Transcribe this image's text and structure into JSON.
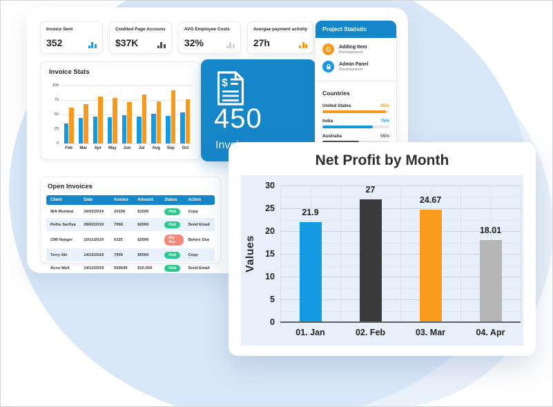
{
  "colors": {
    "accent_blue": "#1586c8",
    "bar_blue": "#129be0",
    "orange": "#f8991d",
    "green": "#2bc990",
    "red": "#f4897b",
    "dark_gray": "#3a3a3a",
    "light_gray": "#b5b5b5",
    "blob_main": "#d9e8f8",
    "blob_light": "#e9f1fb",
    "plot_bg": "#e7f0fa"
  },
  "kpis": [
    {
      "title": "Invoice Sent",
      "value": "352",
      "icon": "mini-bar-chart-icon",
      "icon_color": "#1e96e8"
    },
    {
      "title": "Credited Page Accouns",
      "value": "$37K",
      "icon": "mini-bar-chart-icon",
      "icon_color": "#4a4a4a"
    },
    {
      "title": "AVG Employee Costs",
      "value": "32%",
      "icon": "mini-bar-chart-icon",
      "icon_color": "#cfcfcf"
    },
    {
      "title": "Avergae payment activity",
      "value": "27h",
      "icon": "mini-bar-chart-icon",
      "icon_color": "#f8991d"
    }
  ],
  "invoice_total": {
    "value": "450",
    "label": "Invoices",
    "icon": "invoice-document-icon"
  },
  "project_statistic": {
    "header": "Project Statistic",
    "projects": [
      {
        "name": "Adding Item",
        "sub": "Development",
        "icon_type": "letter",
        "icon": "G",
        "icon_bg": "#f8991d"
      },
      {
        "name": "Admin Panel",
        "sub": "Development",
        "icon_type": "lock",
        "icon": "lock-icon",
        "icon_bg": "#1e96e8"
      }
    ],
    "countries_label": "Countries",
    "countries": [
      {
        "name": "United States",
        "pct": 95,
        "pct_label": "95%",
        "bar_color": "#f8991d",
        "label_color": "#f8991d"
      },
      {
        "name": "India",
        "pct": 75,
        "pct_label": "75%",
        "bar_color": "#129be0",
        "label_color": "#129be0"
      },
      {
        "name": "Australia",
        "pct": 55,
        "pct_label": "55%",
        "bar_color": "#4a4a4a",
        "label_color": "#5a5e64"
      }
    ]
  },
  "open_invoices": {
    "title": "Open Invoices",
    "columns": [
      "Client",
      "Date",
      "Invoice",
      "Amount",
      "Status",
      "Action"
    ],
    "rows": [
      {
        "client": "IRA Mumbai",
        "date": "16/02/2019",
        "invoice": "20156",
        "amount": "$1500",
        "status": "Paid",
        "action": "Copy"
      },
      {
        "client": "Pethe Sarfiya",
        "date": "28/02/2019",
        "invoice": "7959",
        "amount": "$2000",
        "status": "Paid",
        "action": "Send Email"
      },
      {
        "client": "CMI Hanger",
        "date": "10/11/2019",
        "invoice": "6325",
        "amount": "$2500",
        "status": "Big Due",
        "action": "Before Due"
      },
      {
        "client": "Terry Aki",
        "date": "14/12/2019",
        "invoice": "7959",
        "amount": "$5000",
        "status": "Paid",
        "action": "Copy"
      },
      {
        "client": "Acno Mull",
        "date": "14/12/2019",
        "invoice": "559549",
        "amount": "$10,000",
        "status": "Paid",
        "action": "Send Email"
      }
    ]
  },
  "chart_data": [
    {
      "type": "bar",
      "title": "Invoice Stats",
      "categories": [
        "Feb",
        "Mar",
        "Apr",
        "May",
        "Jun",
        "Jul",
        "Aug",
        "Sep",
        "Oct"
      ],
      "series": [
        {
          "name": "series-blue",
          "color": "#129be0",
          "values": [
            35,
            44,
            46,
            45,
            49,
            47,
            51,
            48,
            54
          ]
        },
        {
          "name": "series-orange",
          "color": "#f8991d",
          "values": [
            62,
            68,
            81,
            79,
            71,
            85,
            73,
            92,
            76
          ]
        }
      ],
      "xlabel": "",
      "ylabel": "",
      "ylim": [
        0,
        100
      ],
      "yticks": [
        0,
        25,
        50,
        75,
        100
      ],
      "grid": true,
      "legend": "none"
    },
    {
      "type": "bar",
      "title": "Net Profit by Month",
      "categories": [
        "01. Jan",
        "02. Feb",
        "03. Mar",
        "04. Apr"
      ],
      "values": [
        21.9,
        27,
        24.67,
        18.01
      ],
      "value_labels": [
        "21.9",
        "27",
        "24.67",
        "18.01"
      ],
      "colors": [
        "#129be0",
        "#3a3a3a",
        "#f89b1c",
        "#b5b5b5"
      ],
      "xlabel": "",
      "ylabel": "Values",
      "ylim": [
        0,
        30
      ],
      "ytick_step": 5,
      "minor_step": 2.5,
      "grid": true,
      "legend": "none",
      "plot_bg": "#e7f0fa"
    }
  ]
}
